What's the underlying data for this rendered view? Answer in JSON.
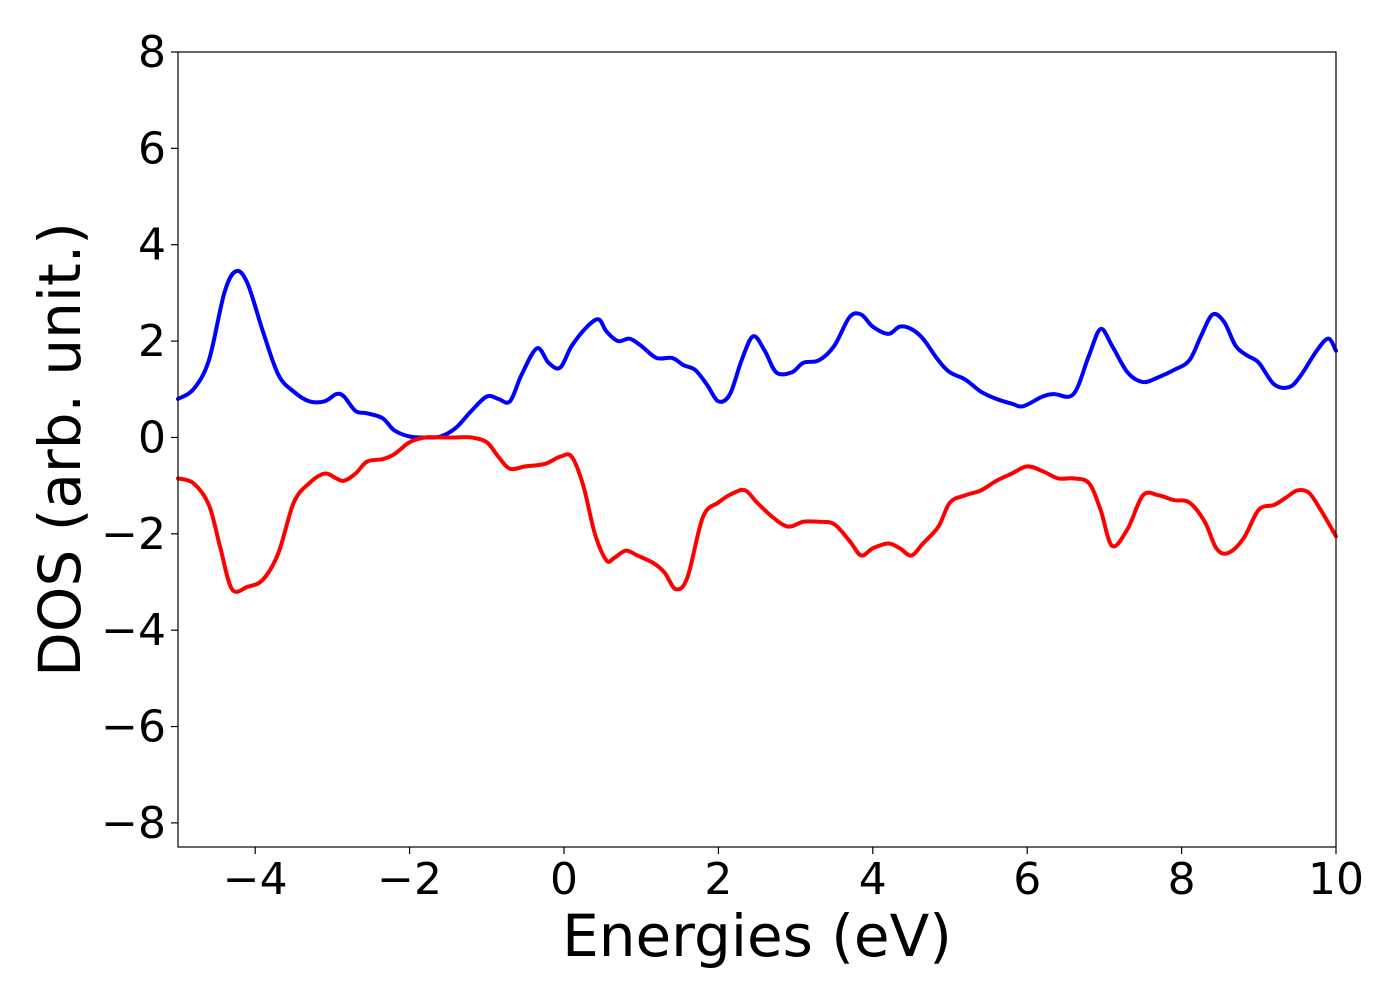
{
  "chart_data": {
    "type": "line",
    "title": "",
    "xlabel": "Energies (eV)",
    "ylabel": "DOS (arb. unit.)",
    "xlim": [
      -5,
      10
    ],
    "ylim": [
      -8.5,
      8
    ],
    "xticks": [
      -4,
      -2,
      0,
      2,
      4,
      6,
      8,
      10
    ],
    "xtick_labels": [
      "−4",
      "−2",
      "0",
      "2",
      "4",
      "6",
      "8",
      "10"
    ],
    "yticks": [
      -8,
      -6,
      -4,
      -2,
      0,
      2,
      4,
      6,
      8
    ],
    "ytick_labels": [
      "−8",
      "−6",
      "−4",
      "−2",
      "0",
      "2",
      "4",
      "6",
      "8"
    ],
    "grid": false,
    "legend": "none",
    "series": [
      {
        "color": "#0000ff",
        "x": [
          -5.0,
          -4.8,
          -4.6,
          -4.4,
          -4.25,
          -4.1,
          -3.9,
          -3.7,
          -3.5,
          -3.3,
          -3.1,
          -2.95,
          -2.85,
          -2.7,
          -2.55,
          -2.35,
          -2.2,
          -2.0,
          -1.8,
          -1.6,
          -1.4,
          -1.2,
          -1.0,
          -0.85,
          -0.7,
          -0.55,
          -0.35,
          -0.2,
          -0.05,
          0.1,
          0.3,
          0.45,
          0.55,
          0.7,
          0.85,
          1.0,
          1.2,
          1.4,
          1.55,
          1.7,
          1.85,
          2.0,
          2.15,
          2.3,
          2.45,
          2.6,
          2.75,
          2.95,
          3.1,
          3.3,
          3.5,
          3.7,
          3.85,
          4.0,
          4.2,
          4.35,
          4.5,
          4.65,
          4.85,
          5.0,
          5.2,
          5.4,
          5.6,
          5.8,
          5.95,
          6.2,
          6.35,
          6.6,
          6.8,
          6.95,
          7.1,
          7.3,
          7.5,
          7.7,
          7.9,
          8.1,
          8.25,
          8.4,
          8.55,
          8.7,
          8.85,
          9.0,
          9.2,
          9.4,
          9.55,
          9.75,
          9.9,
          10.0
        ],
        "y": [
          0.8,
          1.0,
          1.6,
          3.0,
          3.45,
          3.2,
          2.2,
          1.3,
          0.95,
          0.75,
          0.75,
          0.9,
          0.85,
          0.55,
          0.5,
          0.4,
          0.15,
          0.02,
          0.0,
          0.02,
          0.2,
          0.55,
          0.85,
          0.8,
          0.75,
          1.3,
          1.85,
          1.55,
          1.45,
          1.9,
          2.3,
          2.45,
          2.2,
          2.0,
          2.05,
          1.9,
          1.65,
          1.65,
          1.5,
          1.4,
          1.1,
          0.75,
          0.9,
          1.6,
          2.1,
          1.8,
          1.35,
          1.35,
          1.55,
          1.6,
          1.9,
          2.5,
          2.55,
          2.3,
          2.15,
          2.3,
          2.25,
          2.05,
          1.6,
          1.35,
          1.2,
          0.95,
          0.8,
          0.7,
          0.65,
          0.85,
          0.9,
          0.9,
          1.7,
          2.25,
          1.9,
          1.35,
          1.15,
          1.25,
          1.4,
          1.6,
          2.1,
          2.55,
          2.4,
          1.9,
          1.7,
          1.55,
          1.1,
          1.05,
          1.3,
          1.8,
          2.05,
          1.8
        ]
      },
      {
        "color": "#ff0000",
        "x": [
          -5.0,
          -4.8,
          -4.6,
          -4.45,
          -4.3,
          -4.1,
          -3.9,
          -3.7,
          -3.5,
          -3.3,
          -3.1,
          -2.95,
          -2.85,
          -2.7,
          -2.55,
          -2.35,
          -2.2,
          -2.0,
          -1.8,
          -1.6,
          -1.4,
          -1.2,
          -1.0,
          -0.85,
          -0.7,
          -0.5,
          -0.25,
          -0.05,
          0.1,
          0.25,
          0.4,
          0.55,
          0.65,
          0.8,
          0.95,
          1.15,
          1.3,
          1.45,
          1.6,
          1.8,
          2.0,
          2.2,
          2.35,
          2.5,
          2.7,
          2.9,
          3.1,
          3.3,
          3.5,
          3.7,
          3.85,
          4.0,
          4.2,
          4.35,
          4.5,
          4.65,
          4.85,
          5.0,
          5.2,
          5.4,
          5.6,
          5.8,
          6.0,
          6.2,
          6.4,
          6.6,
          6.8,
          6.95,
          7.1,
          7.3,
          7.5,
          7.7,
          7.9,
          8.1,
          8.3,
          8.45,
          8.6,
          8.8,
          9.0,
          9.2,
          9.35,
          9.5,
          9.65,
          9.8,
          10.0
        ],
        "y": [
          -0.85,
          -0.95,
          -1.4,
          -2.3,
          -3.15,
          -3.1,
          -2.95,
          -2.4,
          -1.35,
          -0.95,
          -0.75,
          -0.85,
          -0.9,
          -0.75,
          -0.5,
          -0.45,
          -0.35,
          -0.1,
          0.0,
          0.0,
          0.0,
          0.0,
          -0.1,
          -0.4,
          -0.65,
          -0.6,
          -0.55,
          -0.4,
          -0.4,
          -1.0,
          -2.0,
          -2.55,
          -2.5,
          -2.35,
          -2.45,
          -2.6,
          -2.8,
          -3.15,
          -2.9,
          -1.65,
          -1.35,
          -1.15,
          -1.1,
          -1.35,
          -1.65,
          -1.85,
          -1.75,
          -1.75,
          -1.8,
          -2.15,
          -2.45,
          -2.3,
          -2.2,
          -2.3,
          -2.45,
          -2.2,
          -1.85,
          -1.35,
          -1.2,
          -1.1,
          -0.9,
          -0.75,
          -0.6,
          -0.7,
          -0.85,
          -0.85,
          -0.95,
          -1.5,
          -2.25,
          -1.9,
          -1.2,
          -1.2,
          -1.3,
          -1.35,
          -1.75,
          -2.3,
          -2.4,
          -2.1,
          -1.5,
          -1.4,
          -1.25,
          -1.1,
          -1.15,
          -1.5,
          -2.05
        ]
      }
    ]
  }
}
